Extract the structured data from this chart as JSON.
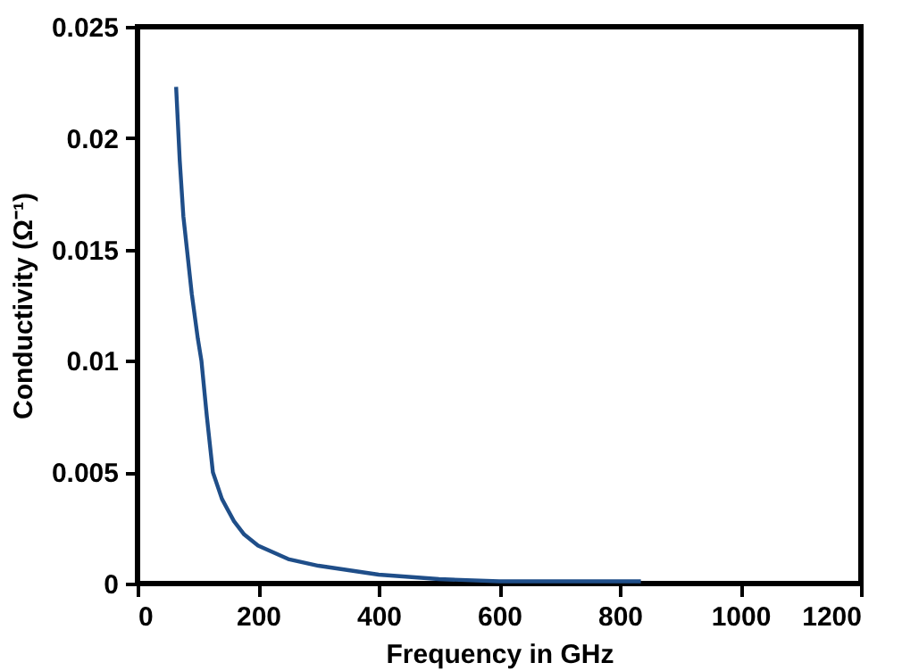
{
  "chart_data": {
    "type": "line",
    "xlabel": "Frequency in GHz",
    "ylabel": "Conductivity (Ω⁻¹)",
    "series": [
      {
        "color": "#1f4e89",
        "x": [
          64,
          70,
          76,
          82,
          90,
          100,
          106,
          115,
          125,
          140,
          160,
          177,
          200,
          250,
          300,
          400,
          500,
          600,
          700,
          835
        ],
        "values": [
          0.0223,
          0.019,
          0.0165,
          0.015,
          0.013,
          0.011,
          0.01,
          0.0075,
          0.005,
          0.0038,
          0.0028,
          0.0022,
          0.0017,
          0.0011,
          0.0008,
          0.0004,
          0.0002,
          0.0001,
          0.0001,
          0.0001
        ]
      }
    ],
    "xlim": [
      0,
      1200
    ],
    "xticks": [
      0,
      200,
      400,
      600,
      800,
      1000,
      1200
    ],
    "ylim": [
      0,
      0.025
    ],
    "yticks": [
      0,
      0.005,
      0.01,
      0.015,
      0.02,
      0.025
    ],
    "grid": false,
    "legend": false,
    "marker": "none",
    "line_style": "solid"
  }
}
